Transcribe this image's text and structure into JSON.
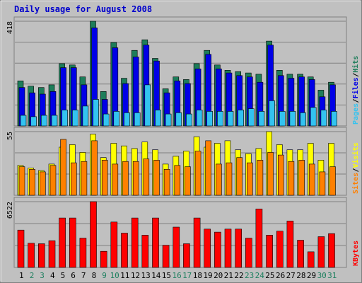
{
  "chart_data": {
    "type": "bar",
    "title": "Daily usage for August 2008",
    "categories": [
      "1",
      "2",
      "3",
      "4",
      "5",
      "6",
      "7",
      "8",
      "9",
      "10",
      "11",
      "12",
      "13",
      "14",
      "15",
      "16",
      "17",
      "18",
      "19",
      "20",
      "21",
      "22",
      "23",
      "24",
      "25",
      "26",
      "27",
      "28",
      "29",
      "30",
      "31"
    ],
    "weekend_days": [
      "2",
      "3",
      "9",
      "10",
      "16",
      "17",
      "23",
      "24",
      "30",
      "31"
    ],
    "colors": {
      "title": "#0000cc",
      "hits": "#1d7d5a",
      "files": "#0000e6",
      "pages": "#33c3f0",
      "visits": "#ffff00",
      "sites": "#ff8000",
      "kbytes": "#ff0000",
      "weekend_label": "#208060",
      "weekday_label": "#000000",
      "grid": "#808080",
      "panel_background": "#c0c0c0"
    },
    "panels": [
      {
        "id": "requests",
        "scale_max_label": "418",
        "right_labels": [
          {
            "text": "Pages",
            "color": "#33c3f0"
          },
          {
            "text": "Files",
            "color": "#0000e6"
          },
          {
            "text": "Hits",
            "color": "#1d7d5a"
          }
        ],
        "series": [
          {
            "name": "Hits",
            "values": [
              170,
              150,
              145,
              155,
              235,
              230,
              185,
              395,
              130,
              315,
              180,
              285,
              325,
              255,
              140,
              185,
              175,
              235,
              285,
              230,
              210,
              205,
              200,
              195,
              320,
              210,
              195,
              195,
              185,
              135,
              165
            ]
          },
          {
            "name": "Files",
            "values": [
              145,
              125,
              120,
              130,
              220,
              220,
              155,
              370,
              100,
              295,
              160,
              260,
              305,
              245,
              125,
              170,
              160,
              215,
              270,
              215,
              200,
              190,
              185,
              165,
              305,
              190,
              180,
              185,
              175,
              110,
              155
            ]
          },
          {
            "name": "Pages",
            "values": [
              40,
              35,
              40,
              40,
              60,
              60,
              75,
              100,
              45,
              55,
              50,
              50,
              155,
              60,
              45,
              50,
              45,
              60,
              55,
              55,
              55,
              60,
              65,
              55,
              95,
              55,
              55,
              50,
              70,
              60,
              55
            ]
          }
        ]
      },
      {
        "id": "visitors",
        "scale_max_label": "55",
        "right_labels": [
          {
            "text": "Sites",
            "color": "#ff8000"
          },
          {
            "text": "Visits",
            "color": "#ffff00"
          }
        ],
        "series": [
          {
            "name": "Visits",
            "values": [
              23,
              21,
              19,
              24,
              37,
              39,
              33,
              47,
              29,
              40,
              38,
              36,
              41,
              35,
              24,
              30,
              34,
              45,
              37,
              40,
              42,
              35,
              32,
              36,
              49,
              39,
              35,
              35,
              40,
              27,
              40
            ]
          },
          {
            "name": "Sites",
            "values": [
              22,
              20,
              18,
              23,
              43,
              25,
              26,
              42,
              27,
              24,
              26,
              26,
              28,
              27,
              20,
              23,
              22,
              34,
              42,
              24,
              25,
              29,
              25,
              27,
              33,
              31,
              26,
              27,
              24,
              18,
              22
            ]
          }
        ]
      },
      {
        "id": "kbytes",
        "scale_max_label": "6522",
        "right_labels": [
          {
            "text": "KBytes",
            "color": "#ff0000"
          }
        ],
        "series": [
          {
            "name": "KBytes",
            "values": [
              3700,
              2400,
              2350,
              2650,
              4900,
              4900,
              2900,
              6522,
              1600,
              4500,
              3400,
              4900,
              3200,
              4900,
              2200,
              4000,
              2350,
              4900,
              3800,
              3500,
              3800,
              3800,
              2900,
              5800,
              3200,
              3600,
              4600,
              2700,
              1550,
              3050,
              3350
            ]
          }
        ]
      }
    ]
  }
}
